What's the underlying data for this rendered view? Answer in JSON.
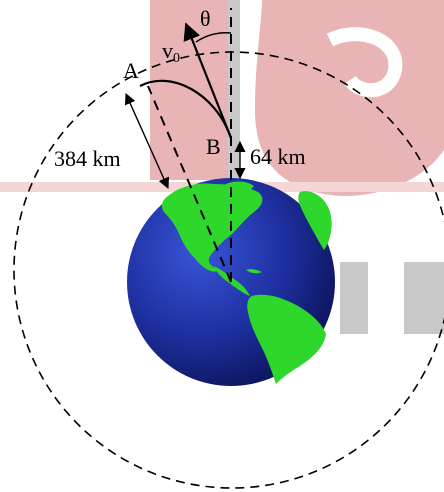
{
  "labels": {
    "point_a": "A",
    "point_b": "B",
    "angle": "θ",
    "velocity": "v",
    "velocity_subscript": "0",
    "distance_ab": "384 km",
    "altitude": "64 km"
  },
  "colors": {
    "watermark_red": "#e9b4b6",
    "watermark_gray": "#c8c8c8",
    "ocean": "#1d2f9e",
    "land": "#2fd62c",
    "ink": "#000000"
  }
}
